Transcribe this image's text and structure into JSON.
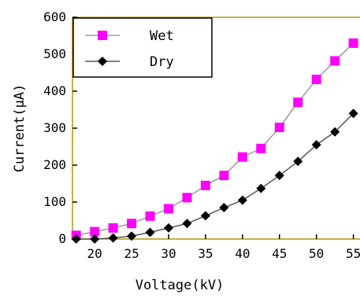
{
  "chart_data": {
    "type": "line",
    "xlabel": "Voltage(kV)",
    "ylabel": "Current(μA)",
    "xlim": [
      17,
      56
    ],
    "ylim": [
      0,
      600
    ],
    "xticks": [
      20,
      25,
      30,
      35,
      40,
      45,
      50,
      55
    ],
    "yticks": [
      0,
      100,
      200,
      300,
      400,
      500,
      600
    ],
    "x_tick_labels": [
      "20",
      "25",
      "30",
      "35",
      "40",
      "45",
      "50",
      "55"
    ],
    "y_tick_labels": [
      "0",
      "100",
      "200",
      "300",
      "400",
      "500",
      "600"
    ],
    "grid": false,
    "legend_position": "top-left",
    "series": [
      {
        "name": "Wet",
        "color": "#ff00ff",
        "marker": "square",
        "line_color": "#999999",
        "x": [
          17.5,
          20,
          22.5,
          25,
          27.5,
          30,
          32.5,
          35,
          37.5,
          40,
          42.5,
          45,
          47.5,
          50,
          52.5,
          55
        ],
        "values": [
          10,
          20,
          30,
          42,
          62,
          82,
          112,
          145,
          172,
          222,
          245,
          302,
          370,
          432,
          482,
          530
        ]
      },
      {
        "name": "Dry",
        "color": "#000000",
        "marker": "diamond",
        "line_color": "#555555",
        "x": [
          17.5,
          20,
          22.5,
          25,
          27.5,
          30,
          32.5,
          35,
          37.5,
          40,
          42.5,
          45,
          47.5,
          50,
          52.5,
          55
        ],
        "values": [
          0,
          0,
          3,
          8,
          18,
          30,
          42,
          63,
          85,
          105,
          137,
          172,
          210,
          255,
          290,
          340
        ]
      }
    ]
  }
}
